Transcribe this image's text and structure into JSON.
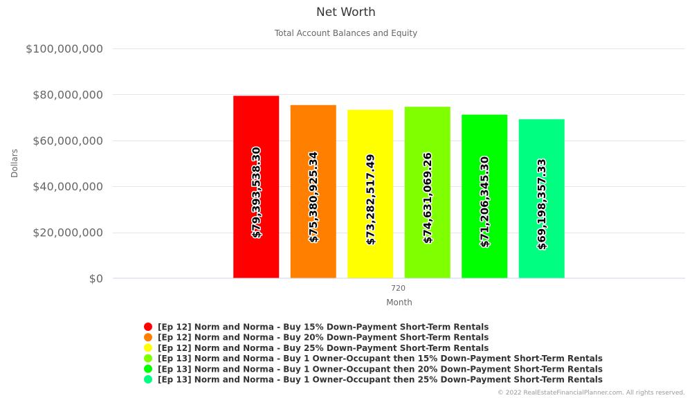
{
  "chart_data": {
    "type": "bar",
    "title": "Net Worth",
    "subtitle": "Total Account Balances and Equity",
    "xlabel": "Month",
    "ylabel": "Dollars",
    "categories": [
      "720"
    ],
    "ylim": [
      0,
      100000000
    ],
    "yticks": [
      0,
      20000000,
      40000000,
      60000000,
      80000000,
      100000000
    ],
    "ytick_labels": [
      "$0",
      "$20,000,000",
      "$40,000,000",
      "$60,000,000",
      "$80,000,000",
      "$100,000,000"
    ],
    "grid": true,
    "legend_position": "bottom",
    "series": [
      {
        "name": "[Ep 12] Norm and Norma - Buy 15% Down-Payment Short-Term Rentals",
        "values": [
          79393538.3
        ],
        "label": "$79,393,538.30",
        "color": "#ff0000"
      },
      {
        "name": "[Ep 12] Norm and Norma - Buy 20% Down-Payment Short-Term Rentals",
        "values": [
          75380925.34
        ],
        "label": "$75,380,925.34",
        "color": "#ff8000"
      },
      {
        "name": "[Ep 12] Norm and Norma - Buy 25% Down-Payment Short-Term Rentals",
        "values": [
          73282517.49
        ],
        "label": "$73,282,517.49",
        "color": "#ffff00"
      },
      {
        "name": "[Ep 13] Norm and Norma - Buy 1 Owner-Occupant then 15% Down-Payment Short-Term Rentals",
        "values": [
          74631069.26
        ],
        "label": "$74,631,069.26",
        "color": "#80ff00"
      },
      {
        "name": "[Ep 13] Norm and Norma - Buy 1 Owner-Occupant then 20% Down-Payment Short-Term Rentals",
        "values": [
          71206345.3
        ],
        "label": "$71,206,345.30",
        "color": "#00ff00"
      },
      {
        "name": "[Ep 13] Norm and Norma - Buy 1 Owner-Occupant then 25% Down-Payment Short-Term Rentals",
        "values": [
          69198357.33
        ],
        "label": "$69,198,357.33",
        "color": "#00ff80"
      }
    ]
  },
  "credits": "© 2022 RealEstateFinancialPlanner.com. All rights reserved."
}
